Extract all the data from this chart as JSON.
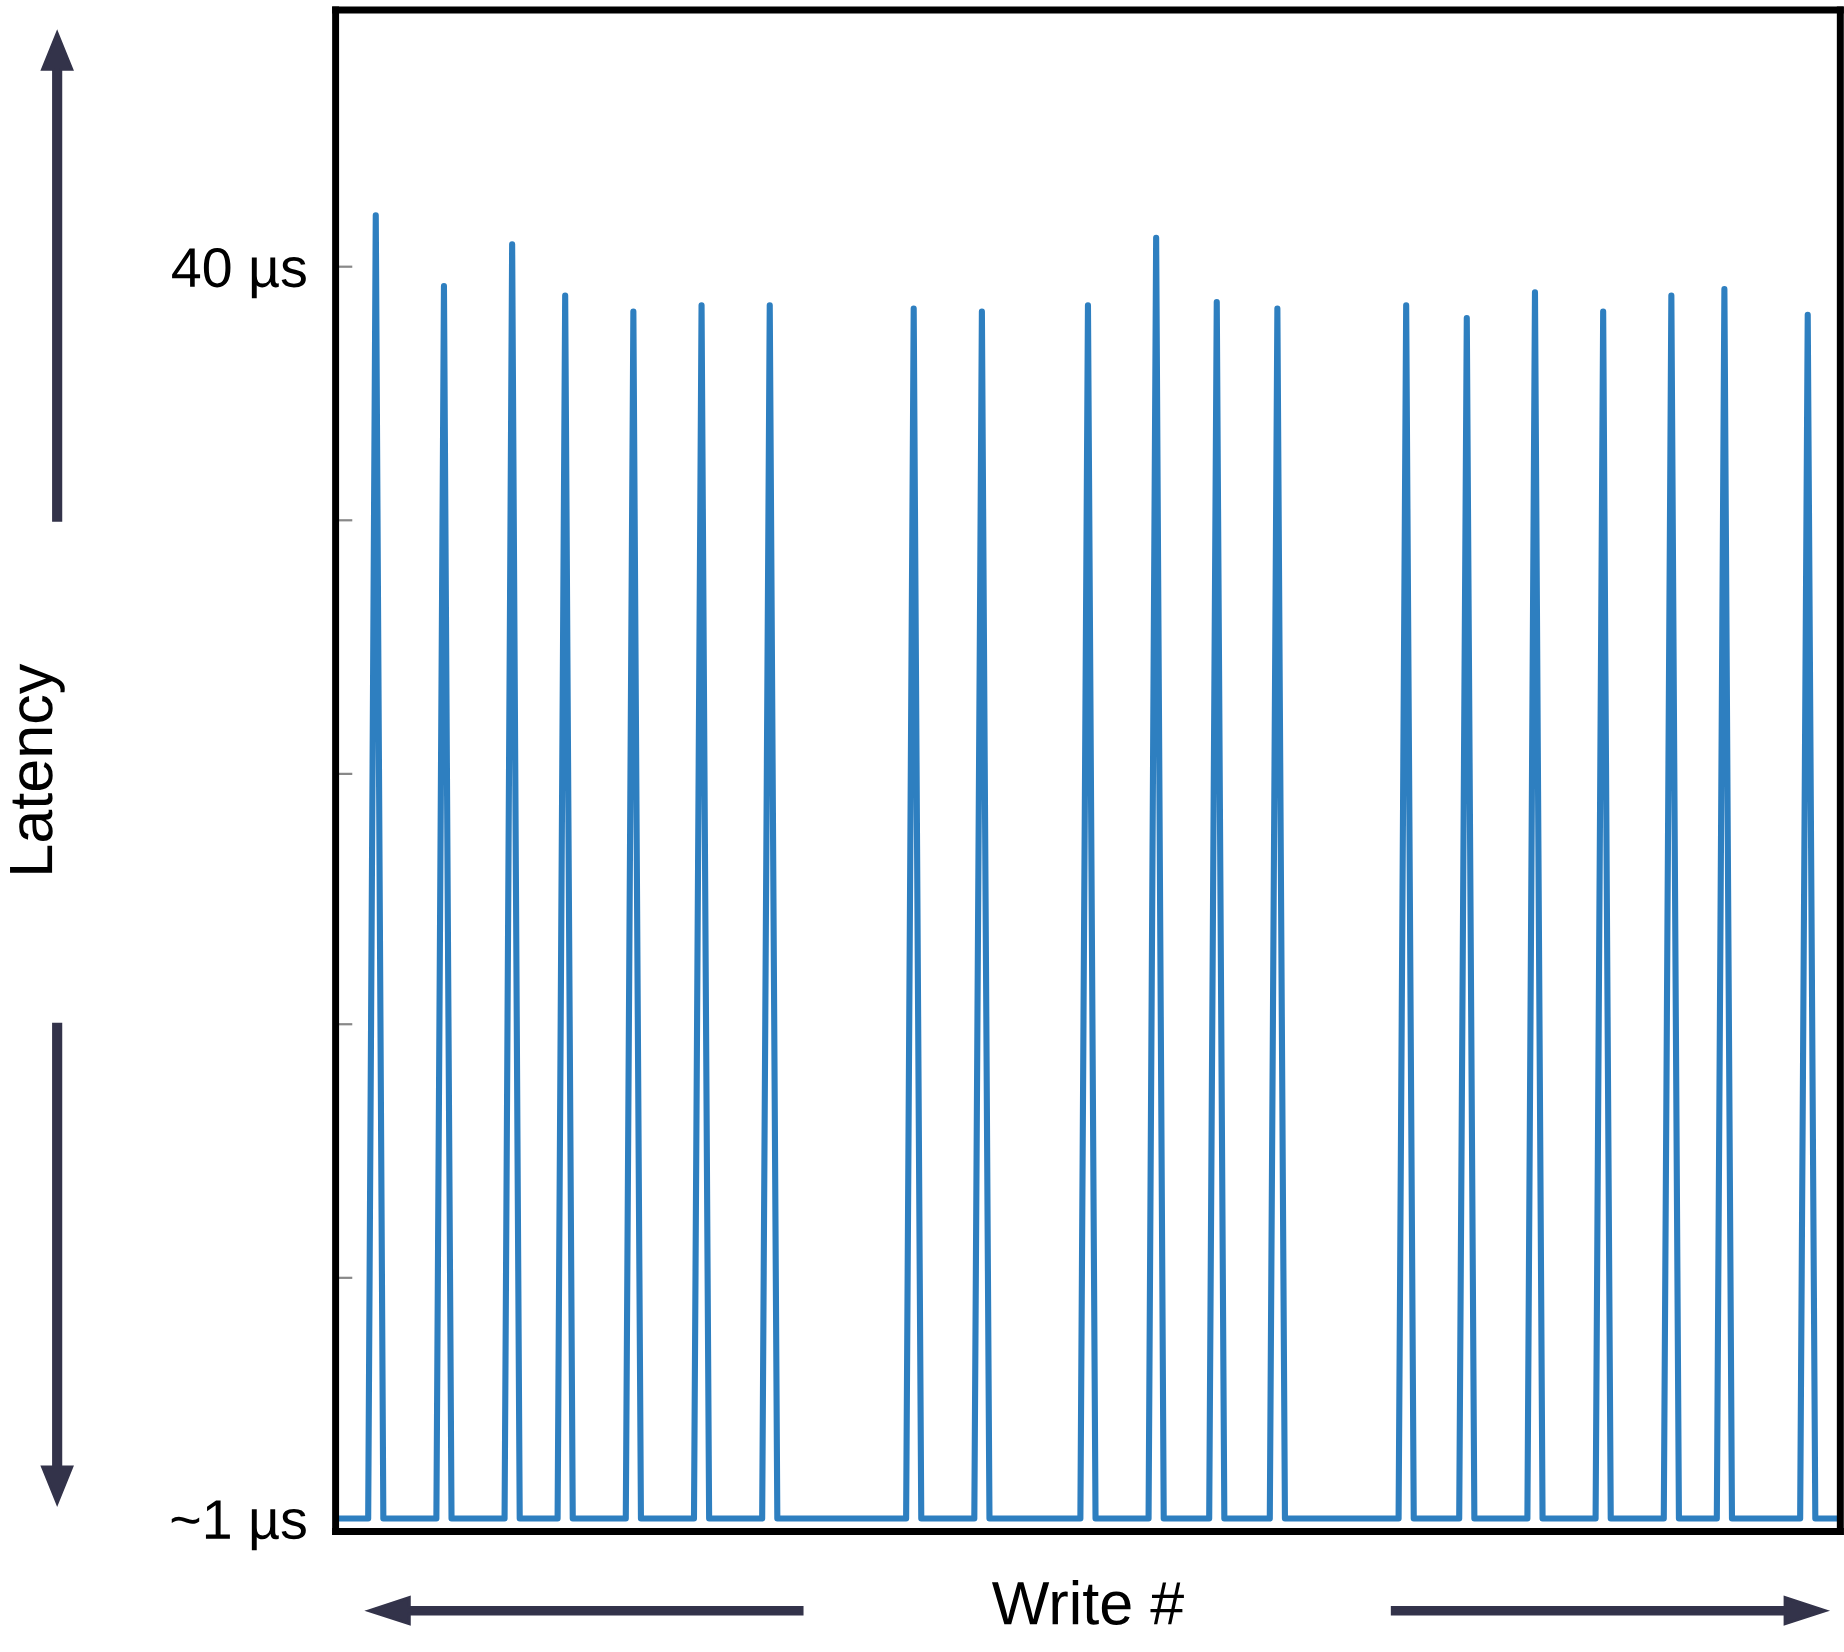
{
  "chart_data": {
    "type": "line",
    "xlabel": "Write #",
    "ylabel": "Latency",
    "categories": [
      null,
      null,
      null,
      null,
      null,
      null,
      null,
      null,
      null,
      null,
      null,
      null,
      null,
      null,
      null,
      null,
      null,
      null,
      null,
      null,
      null,
      null,
      null,
      null,
      null,
      null,
      null,
      null,
      null,
      null,
      null,
      null,
      null,
      null,
      null,
      null,
      null,
      null,
      null,
      null,
      null,
      null,
      null,
      null,
      null,
      null,
      null,
      null,
      null,
      null,
      null,
      null,
      null,
      null,
      null,
      null,
      null,
      null,
      null,
      null,
      null,
      null,
      null,
      null,
      null,
      null,
      null,
      null,
      null,
      null,
      null,
      null,
      null,
      null,
      null,
      null,
      null,
      null,
      null,
      null,
      null,
      null,
      null,
      null,
      null,
      null,
      null,
      null,
      null,
      null,
      null,
      null,
      null,
      null,
      null,
      null,
      null,
      null,
      null,
      null,
      null,
      null,
      null,
      null,
      null,
      null,
      null,
      null,
      null,
      null,
      null,
      null,
      null,
      null,
      null,
      null,
      null,
      null,
      null,
      null,
      null,
      null,
      null,
      null,
      null,
      null,
      null,
      null,
      null,
      null,
      null,
      null,
      null,
      null,
      null,
      null,
      null,
      null,
      null,
      null,
      null,
      null,
      null,
      null,
      null,
      null,
      null,
      null,
      null,
      null,
      null,
      null,
      null,
      null,
      null,
      null,
      null,
      null,
      null,
      null,
      null,
      null,
      null,
      null,
      null,
      null,
      null,
      null,
      null,
      null,
      null,
      null,
      null,
      null,
      null,
      null,
      null,
      null,
      null,
      null,
      null,
      null,
      null,
      null,
      null,
      null,
      null,
      null,
      null,
      null,
      null,
      null,
      null,
      null,
      null,
      null,
      null,
      null,
      null
    ],
    "ylim": [
      0.6,
      48
    ],
    "yticks": [
      {
        "value": 1,
        "label": "~1 µs"
      },
      {
        "value": 8.5,
        "label": null
      },
      {
        "value": 16.4,
        "label": null
      },
      {
        "value": 24.2,
        "label": null
      },
      {
        "value": 32.1,
        "label": null
      },
      {
        "value": 40,
        "label": "40 µs"
      }
    ],
    "grid": false,
    "marker": "none",
    "line_style": "solid",
    "series": [
      {
        "color": "#2e7fc0",
        "values": [
          1,
          1,
          1,
          1,
          1,
          41.6,
          1,
          1,
          1,
          1,
          1,
          1,
          1,
          1,
          39.4,
          1,
          1,
          1,
          1,
          1,
          1,
          1,
          1,
          40.7,
          1,
          1,
          1,
          1,
          1,
          1,
          39.1,
          1,
          1,
          1,
          1,
          1,
          1,
          1,
          1,
          38.6,
          1,
          1,
          1,
          1,
          1,
          1,
          1,
          1,
          38.8,
          1,
          1,
          1,
          1,
          1,
          1,
          1,
          1,
          38.8,
          1,
          1,
          1,
          1,
          1,
          1,
          1,
          1,
          1,
          1,
          1,
          1,
          1,
          1,
          1,
          1,
          1,
          1,
          38.7,
          1,
          1,
          1,
          1,
          1,
          1,
          1,
          1,
          38.6,
          1,
          1,
          1,
          1,
          1,
          1,
          1,
          1,
          1,
          1,
          1,
          1,
          1,
          38.8,
          1,
          1,
          1,
          1,
          1,
          1,
          1,
          1,
          40.9,
          1,
          1,
          1,
          1,
          1,
          1,
          1,
          38.9,
          1,
          1,
          1,
          1,
          1,
          1,
          1,
          38.7,
          1,
          1,
          1,
          1,
          1,
          1,
          1,
          1,
          1,
          1,
          1,
          1,
          1,
          1,
          1,
          1,
          38.8,
          1,
          1,
          1,
          1,
          1,
          1,
          1,
          38.4,
          1,
          1,
          1,
          1,
          1,
          1,
          1,
          1,
          39.2,
          1,
          1,
          1,
          1,
          1,
          1,
          1,
          1,
          38.6,
          1,
          1,
          1,
          1,
          1,
          1,
          1,
          1,
          39.1,
          1,
          1,
          1,
          1,
          1,
          1,
          39.3,
          1,
          1,
          1,
          1,
          1,
          1,
          1,
          1,
          1,
          1,
          38.5,
          1,
          1,
          1,
          1
        ]
      }
    ]
  }
}
